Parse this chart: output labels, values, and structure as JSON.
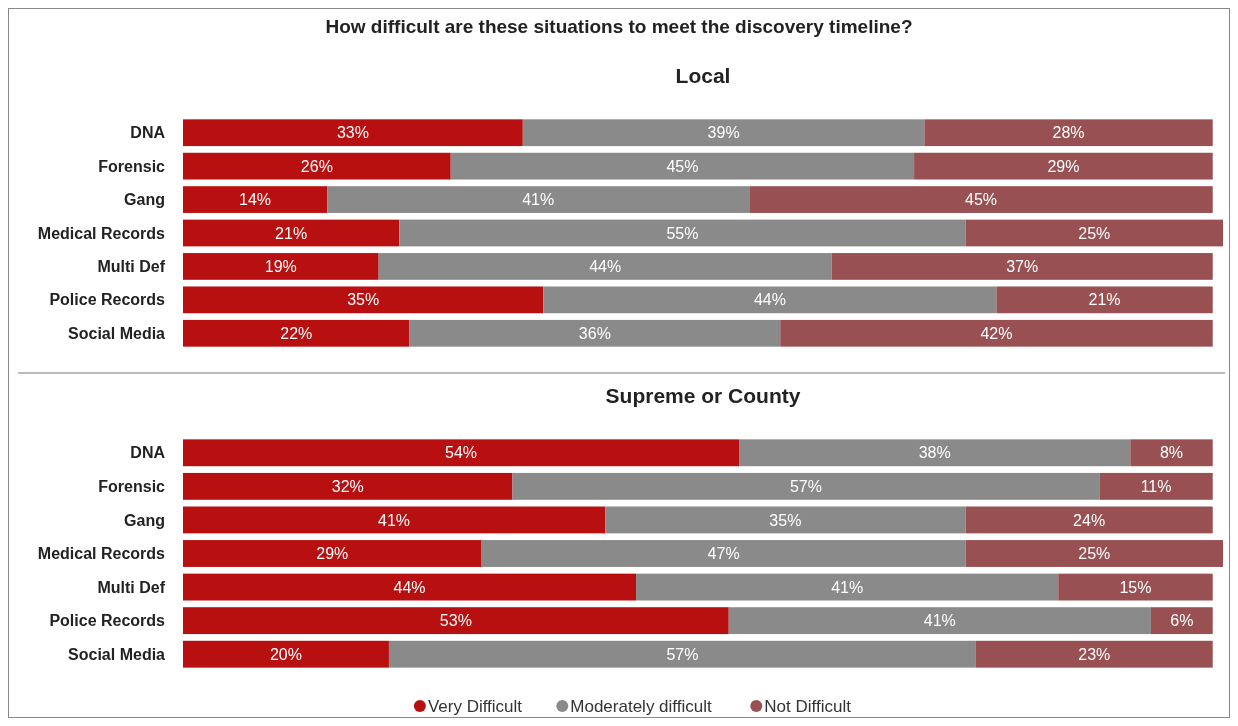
{
  "chart_data": [
    {
      "type": "bar",
      "orientation": "horizontal",
      "stacked": true,
      "title": "How difficult are these situations to meet the discovery timeline?",
      "subtitle": "Local",
      "categories": [
        "DNA",
        "Forensic",
        "Gang",
        "Medical Records",
        "Multi Def",
        "Police Records",
        "Social Media"
      ],
      "tick_labels": "y",
      "legend": false,
      "series": [
        {
          "color": "#b80f10",
          "values": [
            33,
            26,
            14,
            21,
            19,
            35,
            22
          ],
          "value_labels": [
            "33%",
            "26%",
            "14%",
            "21%",
            "19%",
            "35%",
            "22%"
          ]
        },
        {
          "color": "#8a8a8a",
          "values": [
            39,
            45,
            41,
            55,
            44,
            44,
            36
          ],
          "value_labels": [
            "39%",
            "45%",
            "41%",
            "55%",
            "44%",
            "44%",
            "36%"
          ]
        },
        {
          "color": "#985052",
          "values": [
            28,
            29,
            45,
            25,
            37,
            21,
            42
          ],
          "value_labels": [
            "28%",
            "29%",
            "45%",
            "25%",
            "37%",
            "21%",
            "42%"
          ]
        }
      ]
    },
    {
      "type": "bar",
      "orientation": "horizontal",
      "stacked": true,
      "title": "Supreme or County",
      "categories": [
        "DNA",
        "Forensic",
        "Gang",
        "Medical Records",
        "Multi Def",
        "Police Records",
        "Social Media"
      ],
      "tick_labels": "y",
      "legend": "bottom",
      "series": [
        {
          "name": "Very Difficult",
          "color": "#b80f10",
          "values": [
            54,
            32,
            41,
            29,
            44,
            53,
            20
          ],
          "value_labels": [
            "54%",
            "32%",
            "41%",
            "29%",
            "44%",
            "53%",
            "20%"
          ]
        },
        {
          "name": "Moderately difficult",
          "color": "#8a8a8a",
          "values": [
            38,
            57,
            35,
            47,
            41,
            41,
            57
          ],
          "value_labels": [
            "38%",
            "57%",
            "35%",
            "47%",
            "41%",
            "41%",
            "57%"
          ]
        },
        {
          "name": "Not Difficult",
          "color": "#985052",
          "values": [
            8,
            11,
            24,
            25,
            15,
            6,
            23
          ],
          "value_labels": [
            "8%",
            "11%",
            "24%",
            "25%",
            "15%",
            "6%",
            "23%"
          ]
        }
      ]
    }
  ]
}
